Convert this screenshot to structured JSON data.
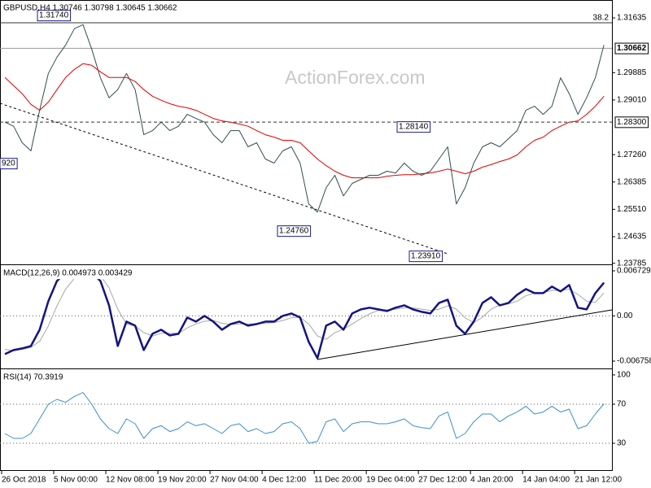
{
  "chart_data": [
    {
      "type": "line",
      "title": "GBPUSD,H4  1.30746 1.30798 1.30645 1.30662",
      "watermark": "ActionForex.com",
      "ylim": [
        1.2375,
        1.32209
      ],
      "yticks": [
        1.31635,
        1.29885,
        {
          "value": 1.2901,
          "label": "1.29010"
        },
        {
          "value": 1.2726,
          "label": "1.27260"
        },
        1.26385,
        {
          "value": 1.2551,
          "label": "1.25510"
        },
        1.24635,
        1.23785
      ],
      "current_price": {
        "value": 1.30662,
        "label": "1.30662"
      },
      "levels": [
        {
          "value": 1.3148,
          "label": "38.2"
        },
        {
          "value": 1.283,
          "label": "1.28300"
        }
      ],
      "annotations": [
        "1.31740",
        "920",
        "1.24760",
        "1.23910",
        "1.28140"
      ],
      "series": [
        {
          "name": "GBPUSD",
          "color": "#2f4f4f",
          "values": [
            1.283,
            1.2817,
            1.2764,
            1.2738,
            1.2868,
            1.2986,
            1.3038,
            1.3077,
            1.3129,
            1.3142,
            1.3064,
            1.2972,
            1.2908,
            1.2934,
            1.2986,
            1.2934,
            1.279,
            1.2803,
            1.283,
            1.2803,
            1.2817,
            1.2855,
            1.2842,
            1.283,
            1.279,
            1.2764,
            1.2803,
            1.2803,
            1.2751,
            1.2764,
            1.2712,
            1.2699,
            1.2738,
            1.2751,
            1.2699,
            1.2568,
            1.2542,
            1.262,
            1.266,
            1.2594,
            1.2634,
            1.2647,
            1.266,
            1.266,
            1.2673,
            1.2667,
            1.2699,
            1.2673,
            1.266,
            1.2673,
            1.2712,
            1.2751,
            1.2568,
            1.262,
            1.2699,
            1.2751,
            1.2764,
            1.2751,
            1.2777,
            1.2803,
            1.2868,
            1.2881,
            1.2855,
            1.2881,
            1.2972,
            1.2921,
            1.2855,
            1.2908,
            1.2972,
            1.3077
          ]
        },
        {
          "name": "MA",
          "color": "#e00000",
          "values": [
            1.2973,
            1.2947,
            1.2921,
            1.2887,
            1.2868,
            1.2894,
            1.2934,
            1.2973,
            1.2999,
            1.3017,
            1.3012,
            1.2991,
            1.2973,
            1.2973,
            1.2973,
            1.296,
            1.2934,
            1.2913,
            1.29,
            1.2889,
            1.2881,
            1.2876,
            1.2868,
            1.2855,
            1.2842,
            1.2834,
            1.283,
            1.2824,
            1.2817,
            1.2803,
            1.279,
            1.2782,
            1.2772,
            1.2772,
            1.2764,
            1.2738,
            1.2712,
            1.2691,
            1.2673,
            1.266,
            1.2652,
            1.2652,
            1.2652,
            1.2652,
            1.2657,
            1.266,
            1.2662,
            1.2662,
            1.2665,
            1.2667,
            1.2673,
            1.268,
            1.2673,
            1.2665,
            1.2673,
            1.2686,
            1.2694,
            1.2704,
            1.2712,
            1.2725,
            1.2751,
            1.2772,
            1.2782,
            1.2803,
            1.2817,
            1.283,
            1.2834,
            1.2855,
            1.2881,
            1.2913
          ]
        }
      ]
    },
    {
      "type": "line",
      "title": "MACD(12,26,9) 0.004973 0.003429",
      "ylim": [
        -0.00773,
        0.007579
      ],
      "yticks": [
        0.006729,
        {
          "value": 0,
          "label": "0.00"
        },
        -0.006758
      ],
      "series": [
        {
          "name": "MACD",
          "color": "#141482",
          "values": [
            -0.00571,
            -0.0051,
            -0.00486,
            -0.0045,
            -0.00207,
            0.00219,
            0.00522,
            0.00644,
            0.00668,
            0.0068,
            0.00644,
            0.00522,
            0.00158,
            -0.0045,
            -0.00085,
            -0.00146,
            -0.0051,
            -0.00267,
            -0.00207,
            -0.00292,
            -0.00267,
            -0.00024,
            -0.00085,
            0,
            -0.00085,
            -0.00207,
            -0.00122,
            -0.00085,
            -0.00146,
            -0.00122,
            -0.00085,
            -0.00085,
            0,
            0.00036,
            -0.00024,
            -0.00389,
            -0.00632,
            -0.00146,
            -0.00085,
            -0.00207,
            0.00036,
            0.00097,
            0.00122,
            0.00097,
            0.00073,
            0.00122,
            0.00158,
            0.00097,
            0.00061,
            0.00036,
            0.00194,
            0.00243,
            -0.00146,
            -0.00267,
            -0.00085,
            0.00194,
            0.00279,
            0.00158,
            0.00194,
            0.00316,
            0.00401,
            0.0034,
            0.0034,
            0.00437,
            0.00365,
            0.00462,
            0.00122,
            0.00097,
            0.0034,
            0.00497
          ]
        },
        {
          "name": "Signal",
          "color": "#a8a8a8",
          "values": [
            -0.005,
            -0.0052,
            -0.005,
            -0.0047,
            -0.0038,
            -0.0015,
            0.0015,
            0.004,
            0.0056,
            0.0064,
            0.0066,
            0.006,
            0.0042,
            0.001,
            -0.0012,
            -0.0015,
            -0.0025,
            -0.003,
            -0.0026,
            -0.0026,
            -0.0026,
            -0.0018,
            -0.0012,
            -0.0008,
            -0.0007,
            -0.0011,
            -0.0013,
            -0.0012,
            -0.0012,
            -0.0012,
            -0.0011,
            -0.001,
            -0.0007,
            -0.0003,
            -0.0002,
            -0.0012,
            -0.003,
            -0.0035,
            -0.0025,
            -0.002,
            -0.0012,
            -0.0004,
            0.0003,
            0.0008,
            0.0009,
            0.001,
            0.0012,
            0.0012,
            0.001,
            0.0008,
            0.001,
            0.0015,
            0.001,
            -0.0003,
            -0.001,
            -0.0002,
            0.001,
            0.0016,
            0.0018,
            0.0022,
            0.003,
            0.0034,
            0.0035,
            0.0038,
            0.0038,
            0.004,
            0.0032,
            0.0022,
            0.002,
            0.00343
          ]
        }
      ]
    },
    {
      "type": "line",
      "title": "RSI(14) 70.3919",
      "ylim": [
        2.5,
        105.8
      ],
      "yticks": [
        100,
        70,
        30
      ],
      "categories": [
        "26 Oct 2018",
        null,
        null,
        null,
        null,
        null,
        "5 Nov 00:00",
        null,
        null,
        null,
        null,
        null,
        "12 Nov 08:00",
        null,
        null,
        null,
        null,
        null,
        "19 Nov 20:00",
        null,
        null,
        null,
        null,
        null,
        "27 Nov 04:00",
        null,
        null,
        null,
        null,
        null,
        "4 Dec 12:00",
        null,
        null,
        null,
        null,
        null,
        "11 Dec 20:00",
        null,
        null,
        null,
        null,
        null,
        "19 Dec 04:00",
        null,
        null,
        null,
        null,
        null,
        "27 Dec 12:00",
        null,
        null,
        null,
        null,
        null,
        "4 Jan 20:00",
        null,
        null,
        null,
        null,
        null,
        "14 Jan 04:00",
        null,
        null,
        null,
        null,
        null,
        "21 Jan 12:00",
        null,
        null,
        null
      ],
      "series": [
        {
          "name": "RSI",
          "color": "#3a8fd0",
          "values": [
            40,
            35,
            35,
            40,
            55,
            70,
            75,
            72,
            78,
            82,
            70,
            55,
            45,
            40,
            55,
            50,
            35,
            45,
            48,
            42,
            45,
            52,
            48,
            50,
            45,
            40,
            48,
            50,
            42,
            45,
            40,
            42,
            50,
            52,
            45,
            30,
            32,
            52,
            55,
            42,
            50,
            52,
            52,
            50,
            50,
            52,
            55,
            48,
            46,
            45,
            58,
            62,
            35,
            40,
            52,
            60,
            60,
            52,
            58,
            62,
            68,
            60,
            62,
            68,
            62,
            65,
            45,
            48,
            60,
            70.3919
          ]
        }
      ]
    }
  ]
}
